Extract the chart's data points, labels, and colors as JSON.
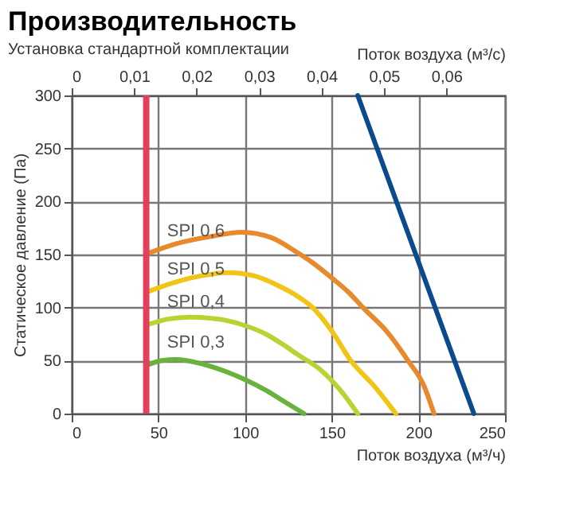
{
  "chart_data": {
    "type": "line",
    "title": "Производительность",
    "subtitle": "Установка стандартной комплектации",
    "xlabel": "Поток воздуха (м³/ч)",
    "ylabel": "Статическое давление (Па)",
    "x2label": "Поток воздуха (м³/с)",
    "xlim": [
      0,
      250
    ],
    "xticks": [
      0,
      50,
      100,
      150,
      200,
      250
    ],
    "ylim": [
      0,
      300
    ],
    "yticks": [
      0,
      50,
      100,
      150,
      200,
      250,
      300
    ],
    "x2lim": [
      0,
      0.0694
    ],
    "x2ticks": [
      {
        "value": 0,
        "label": "0"
      },
      {
        "value": 0.01,
        "label": "0,01"
      },
      {
        "value": 0.02,
        "label": "0,02"
      },
      {
        "value": 0.03,
        "label": "0,03"
      },
      {
        "value": 0.04,
        "label": "0,04"
      },
      {
        "value": 0.05,
        "label": "0,05"
      },
      {
        "value": 0.06,
        "label": "0,06"
      }
    ],
    "grid": true,
    "legend": false,
    "marker": "none",
    "line_style": "solid",
    "series": [
      {
        "name": "SPI 0,6",
        "color": "#e8892e",
        "x": [
          44,
          60,
          80,
          98,
          115,
          130,
          140,
          150,
          160,
          168,
          182,
          194,
          203,
          209
        ],
        "values": [
          151,
          160,
          167,
          171,
          166,
          152,
          141,
          128,
          114,
          100,
          77,
          50,
          27,
          0
        ]
      },
      {
        "name": "SPI 0,5",
        "color": "#f2c418",
        "x": [
          44,
          60,
          75,
          90,
          105,
          120,
          130,
          139,
          150,
          161,
          175,
          187
        ],
        "values": [
          115,
          124,
          130,
          133,
          130,
          120,
          111,
          100,
          78,
          50,
          25,
          0
        ]
      },
      {
        "name": "SPI 0,4",
        "color": "#b6d433",
        "x": [
          44,
          55,
          68,
          85,
          98,
          112,
          122,
          130,
          143,
          155,
          165
        ],
        "values": [
          84,
          89,
          91,
          89,
          84,
          75,
          65,
          56,
          42,
          22,
          0
        ]
      },
      {
        "name": "SPI 0,3",
        "color": "#6ab23e",
        "x": [
          44,
          52,
          60,
          75,
          90,
          100,
          112,
          122,
          134
        ],
        "values": [
          46,
          50,
          51,
          47,
          39,
          32,
          22,
          12,
          0
        ]
      },
      {
        "color": "#0b4a8c",
        "x": [
          165,
          232
        ],
        "values": [
          300,
          0
        ]
      }
    ],
    "ref_lines": [
      {
        "axis": "x",
        "value": 43,
        "color": "#e2405c",
        "line_style": "solid"
      }
    ]
  }
}
